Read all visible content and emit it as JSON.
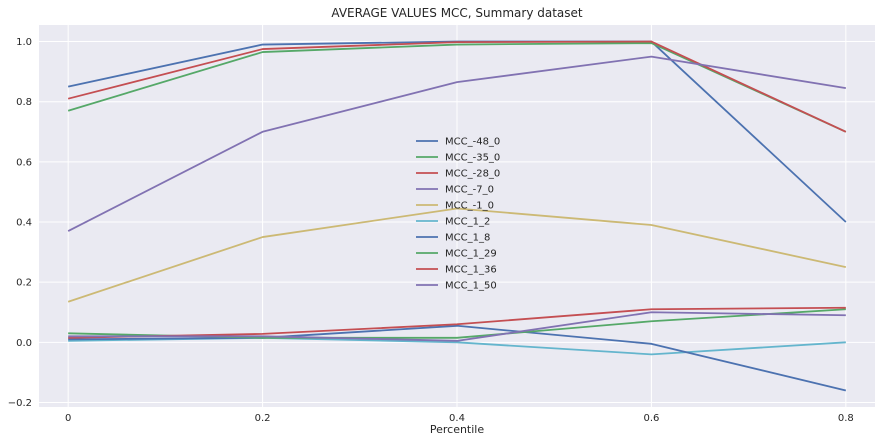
{
  "chart_data": {
    "type": "line",
    "title": "AVERAGE VALUES MCC, Summary dataset",
    "xlabel": "Percentile",
    "ylabel": "",
    "x": [
      0,
      0.2,
      0.4,
      0.6,
      0.8
    ],
    "x_ticks": [
      "0",
      "0.2",
      "0.4",
      "0.6",
      "0.8"
    ],
    "xlim": [
      -0.03,
      0.83
    ],
    "y_ticks": [
      "−0.2",
      "0.0",
      "0.2",
      "0.4",
      "0.6",
      "0.8",
      "1.0"
    ],
    "y_tick_values": [
      -0.2,
      0.0,
      0.2,
      0.4,
      0.6,
      0.8,
      1.0
    ],
    "ylim": [
      -0.215,
      1.055
    ],
    "grid": true,
    "legend_position": "center",
    "series": [
      {
        "name": "MCC_-48_0",
        "color": "#4c72b0",
        "values": [
          0.85,
          0.99,
          1.0,
          1.0,
          0.4
        ]
      },
      {
        "name": "MCC_-35_0",
        "color": "#55a868",
        "values": [
          0.77,
          0.965,
          0.99,
          0.995,
          0.7
        ]
      },
      {
        "name": "MCC_-28_0",
        "color": "#c44e52",
        "values": [
          0.81,
          0.975,
          0.998,
          1.0,
          0.7
        ]
      },
      {
        "name": "MCC_-7_0",
        "color": "#8172b2",
        "values": [
          0.37,
          0.7,
          0.865,
          0.95,
          0.845
        ]
      },
      {
        "name": "MCC_-1_0",
        "color": "#ccb974",
        "values": [
          0.135,
          0.35,
          0.445,
          0.39,
          0.25
        ]
      },
      {
        "name": "MCC_1_2",
        "color": "#64b5cd",
        "values": [
          0.005,
          0.015,
          0.0,
          -0.04,
          0.0
        ]
      },
      {
        "name": "MCC_1_8",
        "color": "#4c72b0",
        "values": [
          0.01,
          0.015,
          0.055,
          -0.005,
          -0.16
        ]
      },
      {
        "name": "MCC_1_29",
        "color": "#55a868",
        "values": [
          0.03,
          0.015,
          0.015,
          0.07,
          0.11
        ]
      },
      {
        "name": "MCC_1_36",
        "color": "#c44e52",
        "values": [
          0.015,
          0.028,
          0.06,
          0.11,
          0.115
        ]
      },
      {
        "name": "MCC_1_50",
        "color": "#8172b2",
        "values": [
          0.02,
          0.02,
          0.005,
          0.1,
          0.09
        ]
      }
    ]
  }
}
